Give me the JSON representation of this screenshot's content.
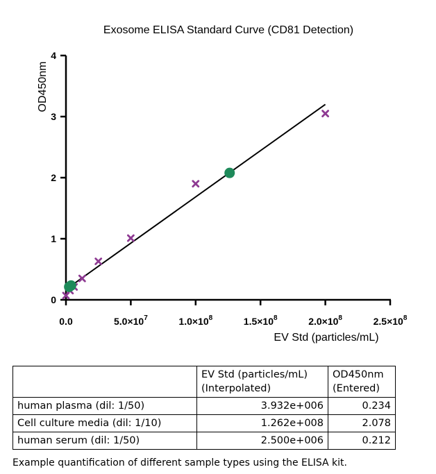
{
  "chart_data": {
    "type": "scatter",
    "title": "Exosome ELISA Standard Curve (CD81 Detection)",
    "xlabel": "EV Std (particles/mL)",
    "ylabel": "OD450nm",
    "xlim": [
      0,
      250000000
    ],
    "ylim": [
      0,
      4
    ],
    "x_ticks": [
      {
        "value": 0,
        "label": "0.0"
      },
      {
        "value": 50000000,
        "label": "5.0×10",
        "exp": "7"
      },
      {
        "value": 100000000,
        "label": "1.0×10",
        "exp": "8"
      },
      {
        "value": 150000000,
        "label": "1.5×10",
        "exp": "8"
      },
      {
        "value": 200000000,
        "label": "2.0×10",
        "exp": "8"
      },
      {
        "value": 250000000,
        "label": "2.5×10",
        "exp": "8"
      }
    ],
    "y_ticks": [
      {
        "value": 0,
        "label": "0"
      },
      {
        "value": 1,
        "label": "1"
      },
      {
        "value": 2,
        "label": "2"
      },
      {
        "value": 3,
        "label": "3"
      },
      {
        "value": 4,
        "label": "4"
      }
    ],
    "grid": false,
    "standards": {
      "marker": "x",
      "color": "#8e3a92",
      "points": [
        {
          "x": 0,
          "y": 0.07
        },
        {
          "x": 3125000,
          "y": 0.15
        },
        {
          "x": 6250000,
          "y": 0.21
        },
        {
          "x": 12500000,
          "y": 0.35
        },
        {
          "x": 25000000,
          "y": 0.63
        },
        {
          "x": 50000000,
          "y": 1.01
        },
        {
          "x": 100000000,
          "y": 1.9
        },
        {
          "x": 200000000,
          "y": 3.05
        }
      ]
    },
    "samples": {
      "marker": "circle",
      "color": "#1e8a5a",
      "points": [
        {
          "x": 3932000,
          "y": 0.234
        },
        {
          "x": 126200000,
          "y": 2.078
        },
        {
          "x": 2500000,
          "y": 0.212
        }
      ]
    },
    "fit_line": {
      "color": "#000000",
      "x": [
        0,
        200000000
      ],
      "y": [
        0.17,
        3.2
      ]
    }
  },
  "table": {
    "header": {
      "col1": "",
      "col2_line1": "EV Std (particles/mL)",
      "col2_line2": "(Interpolated)",
      "col3_line1": "OD450nm",
      "col3_line2": "(Entered)"
    },
    "rows": [
      {
        "sample": "human plasma (dil: 1/50)",
        "ev": "3.932e+006",
        "od": "0.234"
      },
      {
        "sample": "Cell culture media (dil: 1/10)",
        "ev": "1.262e+008",
        "od": "2.078"
      },
      {
        "sample": "human serum (dil: 1/50)",
        "ev": "2.500e+006",
        "od": "0.212"
      }
    ]
  },
  "caption": "Example quantification of different sample types using the ELISA kit."
}
